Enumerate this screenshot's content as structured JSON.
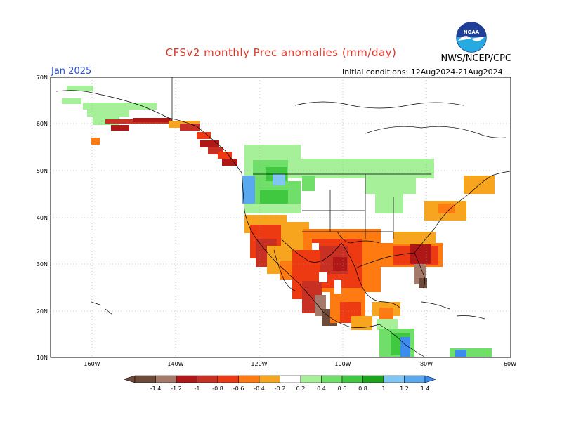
{
  "title": "CFSv2 monthly Prec anomalies (mm/day)",
  "agency": "NWS/NCEP/CPC",
  "month": "Jan 2025",
  "initial_conditions": "Initial conditions: 12Aug2024-21Aug2024",
  "logo_text": "NOAA",
  "lat_labels": [
    "70N",
    "60N",
    "50N",
    "40N",
    "30N",
    "20N",
    "10N"
  ],
  "lon_labels": [
    "160W",
    "140W",
    "120W",
    "100W",
    "80W",
    "60W"
  ],
  "legend": {
    "labels": [
      "-1.4",
      "-1.2",
      "-1",
      "-0.8",
      "-0.6",
      "-0.4",
      "-0.2",
      "0.2",
      "0.4",
      "0.6",
      "0.8",
      "1",
      "1.2",
      "1.4"
    ],
    "colors": [
      "#6e4a3a",
      "#a67a6a",
      "#b01818",
      "#c83024",
      "#ee3a12",
      "#ff7a10",
      "#f7a51e",
      "#a6f09a",
      "#70df6a",
      "#40c840",
      "#1aa51a",
      "#7fc7f2",
      "#5aa8ee",
      "#3c8ced"
    ]
  },
  "units": "mm/day",
  "map_extent": {
    "lon": [
      -170,
      -60
    ],
    "lat": [
      10,
      70
    ]
  }
}
